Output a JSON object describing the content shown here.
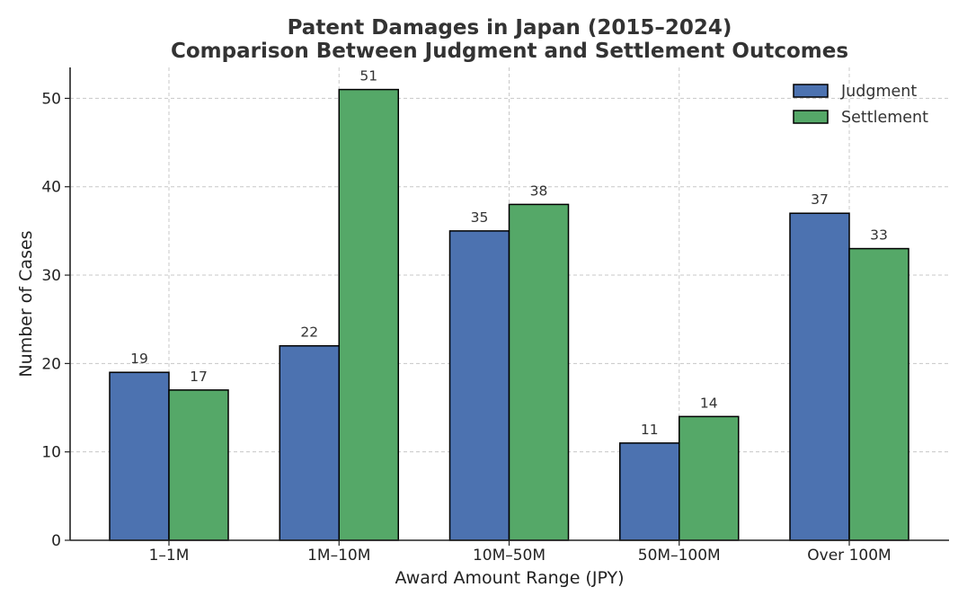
{
  "chart_data": {
    "type": "bar",
    "title_line1": "Patent Damages in Japan (2015–2024)",
    "title_line2": "Comparison Between Judgment and Settlement Outcomes",
    "xlabel": "Award Amount Range (JPY)",
    "ylabel": "Number of Cases",
    "categories": [
      "1–1M",
      "1M–10M",
      "10M–50M",
      "50M–100M",
      "Over 100M"
    ],
    "series": [
      {
        "name": "Judgment",
        "values": [
          19,
          22,
          35,
          11,
          37
        ],
        "color": "#4c72b0"
      },
      {
        "name": "Settlement",
        "values": [
          17,
          51,
          38,
          14,
          33
        ],
        "color": "#55a868"
      }
    ],
    "ylim": [
      0,
      53.5
    ],
    "yticks": [
      0,
      10,
      20,
      30,
      40,
      50
    ],
    "grid": true,
    "legend_position": "top-right"
  }
}
